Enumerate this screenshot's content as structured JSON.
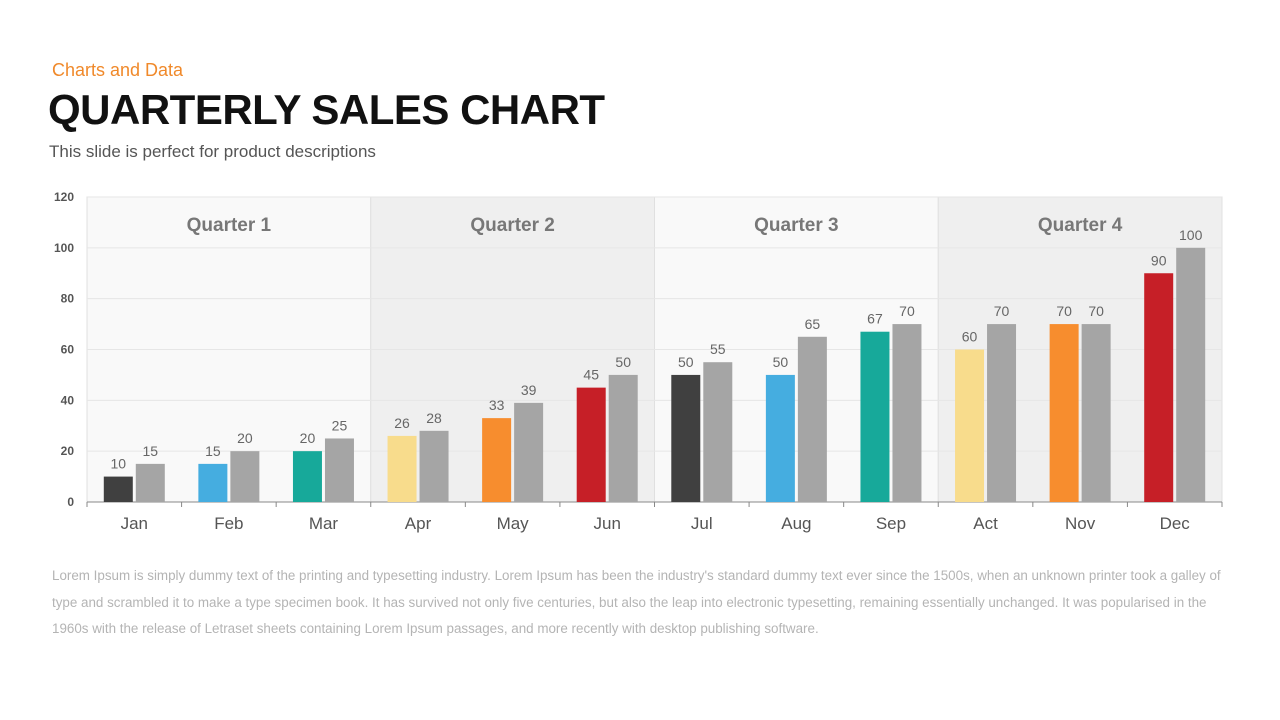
{
  "header": {
    "kicker": "Charts and Data",
    "title": "QUARTERLY SALES CHART",
    "subtitle": "This slide is perfect for product descriptions"
  },
  "body_text": "Lorem Ipsum is simply dummy text of the printing and typesetting industry. Lorem Ipsum has been the industry's standard dummy text ever since the 1500s, when an unknown printer took a galley of type and scrambled it to make a type specimen book. It has survived not only five centuries, but also the leap into electronic typesetting, remaining essentially unchanged. It was popularised in the 1960s with the release of Letraset sheets containing Lorem Ipsum passages, and more recently with desktop publishing software.",
  "chart_data": {
    "type": "bar",
    "title": "",
    "xlabel": "",
    "ylabel": "",
    "ylim": [
      0,
      120
    ],
    "yticks": [
      0,
      20,
      40,
      60,
      80,
      100,
      120
    ],
    "grid": true,
    "legend": "none",
    "categories": [
      "Jan",
      "Feb",
      "Mar",
      "Apr",
      "May",
      "Jun",
      "Jul",
      "Aug",
      "Sep",
      "Act",
      "Nov",
      "Dec"
    ],
    "quarters": [
      {
        "label": "Quarter 1",
        "background": "#f9f9f9"
      },
      {
        "label": "Quarter 2",
        "background": "#efefef"
      },
      {
        "label": "Quarter 3",
        "background": "#f9f9f9"
      },
      {
        "label": "Quarter 4",
        "background": "#efefef"
      }
    ],
    "series": [
      {
        "values": [
          10,
          15,
          20,
          26,
          33,
          45,
          50,
          50,
          67,
          60,
          70,
          90
        ],
        "colors": [
          "#404040",
          "#45ade0",
          "#17a99a",
          "#f8dc8c",
          "#f78d2e",
          "#c61f27",
          "#404040",
          "#45ade0",
          "#17a99a",
          "#f8dc8c",
          "#f78d2e",
          "#c61f27"
        ]
      },
      {
        "values": [
          15,
          20,
          25,
          28,
          39,
          50,
          55,
          65,
          70,
          70,
          70,
          100
        ],
        "color": "#a5a5a5"
      }
    ],
    "data_labels": true
  }
}
